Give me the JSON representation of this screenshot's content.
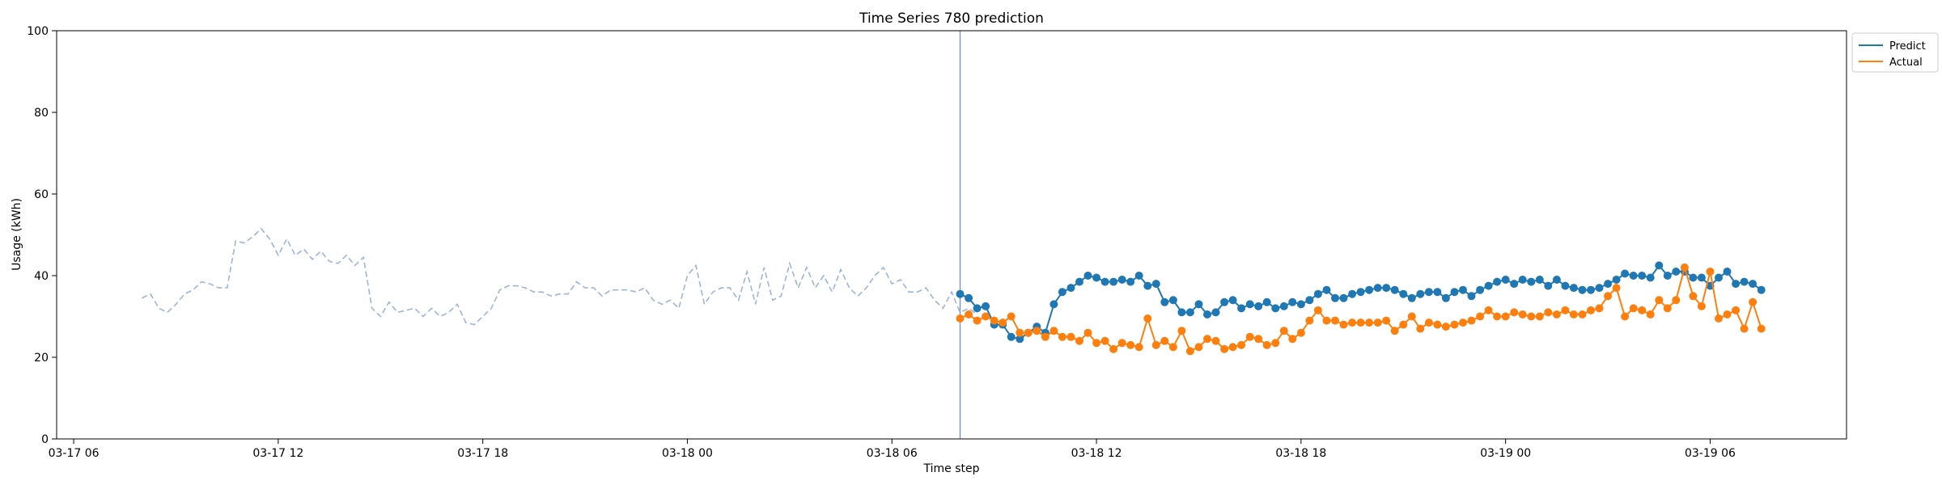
{
  "chart_data": {
    "type": "line",
    "title": "Time Series 780 prediction",
    "xlabel": "Time step",
    "ylabel": "Usage (kWh)",
    "ylim": [
      0,
      100
    ],
    "yticks": [
      0,
      20,
      40,
      60,
      80,
      100
    ],
    "xlim": [
      "03-17 05:30",
      "03-19 10:00"
    ],
    "xticks": [
      {
        "label": "03-17 06",
        "t": "03-17 06:00"
      },
      {
        "label": "03-17 12",
        "t": "03-17 12:00"
      },
      {
        "label": "03-17 18",
        "t": "03-17 18:00"
      },
      {
        "label": "03-18 00",
        "t": "03-18 00:00"
      },
      {
        "label": "03-18 06",
        "t": "03-18 06:00"
      },
      {
        "label": "03-18 12",
        "t": "03-18 12:00"
      },
      {
        "label": "03-18 18",
        "t": "03-18 18:00"
      },
      {
        "label": "03-19 00",
        "t": "03-19 00:00"
      },
      {
        "label": "03-19 06",
        "t": "03-19 06:00"
      }
    ],
    "grid": false,
    "legend_position": "top-right, outside plot",
    "forecast_start": "03-18 08:00",
    "interval_minutes": 15,
    "series": [
      {
        "name": "History",
        "style": "dashed",
        "color": "#9fb4d6",
        "start": "03-17 08:00",
        "values": [
          34.5,
          35.5,
          32,
          31,
          33,
          35.5,
          36.5,
          38.5,
          38,
          37,
          37,
          48.5,
          48,
          49.5,
          51.5,
          49,
          45,
          49,
          45,
          46.5,
          44,
          46,
          43.5,
          43,
          45,
          42.5,
          44.5,
          32,
          30,
          33.5,
          31,
          31.5,
          32,
          30,
          32,
          30,
          31,
          33,
          28.5,
          28,
          30,
          32,
          36.5,
          37.5,
          37.5,
          37,
          36,
          36,
          35,
          35.5,
          35.5,
          38.5,
          37,
          37,
          35,
          36.5,
          36.5,
          36.5,
          36,
          37,
          34,
          33,
          34,
          32,
          40,
          42.5,
          33,
          36,
          37,
          37,
          34,
          41,
          33,
          42,
          34,
          35,
          43,
          37,
          42,
          37,
          40,
          36,
          41.5,
          37,
          35,
          37,
          40,
          42,
          38,
          39,
          36,
          36,
          37,
          34,
          32,
          36,
          31,
          32,
          30.5
        ]
      },
      {
        "name": "Predict",
        "style": "solid-markers",
        "color": "#1f77b4",
        "start": "03-18 08:00",
        "values": [
          35.5,
          34.5,
          32,
          32.5,
          28,
          28,
          25,
          24.5,
          26,
          27.5,
          26,
          33,
          36,
          37,
          38.5,
          40,
          39.5,
          38.5,
          38.5,
          39,
          38.5,
          40,
          37.5,
          38,
          33.5,
          34,
          31,
          31,
          33,
          30.5,
          31,
          33.5,
          34,
          32,
          33,
          32.5,
          33.5,
          32,
          32.5,
          33.5,
          33,
          34,
          35.5,
          36.5,
          34.5,
          34.5,
          35.5,
          36,
          36.5,
          37,
          37,
          36.5,
          35.5,
          34.5,
          35.5,
          36,
          36,
          34.5,
          36,
          36.5,
          35,
          36.5,
          37.5,
          38.5,
          39,
          38,
          39,
          38.5,
          39,
          37.5,
          39,
          37.5,
          37,
          36.5,
          36.5,
          37,
          38,
          39,
          40.5,
          40,
          40,
          39.5,
          42.5,
          40,
          41,
          41,
          39.5,
          39.5,
          37.5,
          39.5,
          41,
          38,
          38.5,
          38,
          36.5
        ]
      },
      {
        "name": "Actual",
        "style": "solid-markers",
        "color": "#ff7f0e",
        "start": "03-18 08:00",
        "values": [
          29.5,
          30.5,
          29,
          30,
          29,
          28.5,
          30,
          26,
          26,
          26.5,
          25,
          26.5,
          25,
          25,
          24,
          26,
          23.5,
          24,
          22,
          23.5,
          23,
          22.5,
          29.5,
          23,
          24,
          22.5,
          26.5,
          21.5,
          22.5,
          24.5,
          24,
          22,
          22.5,
          23,
          25,
          24.5,
          23,
          23.5,
          26.5,
          24.5,
          26,
          29,
          31.5,
          29,
          29,
          28,
          28.5,
          28.5,
          28.5,
          28.5,
          29,
          26.5,
          28,
          30,
          27,
          28.5,
          28,
          27.5,
          28,
          28.5,
          29,
          30,
          31.5,
          30,
          30,
          31,
          30.5,
          30,
          30,
          31,
          30.5,
          31.5,
          30.5,
          30.5,
          31.5,
          32,
          35,
          37,
          30,
          32,
          31.5,
          30.5,
          34,
          32,
          34,
          42,
          35,
          32.5,
          41,
          29.5,
          30.5,
          31.5,
          27,
          33.5,
          27
        ]
      }
    ],
    "legend_entries": [
      "Predict",
      "Actual"
    ]
  }
}
